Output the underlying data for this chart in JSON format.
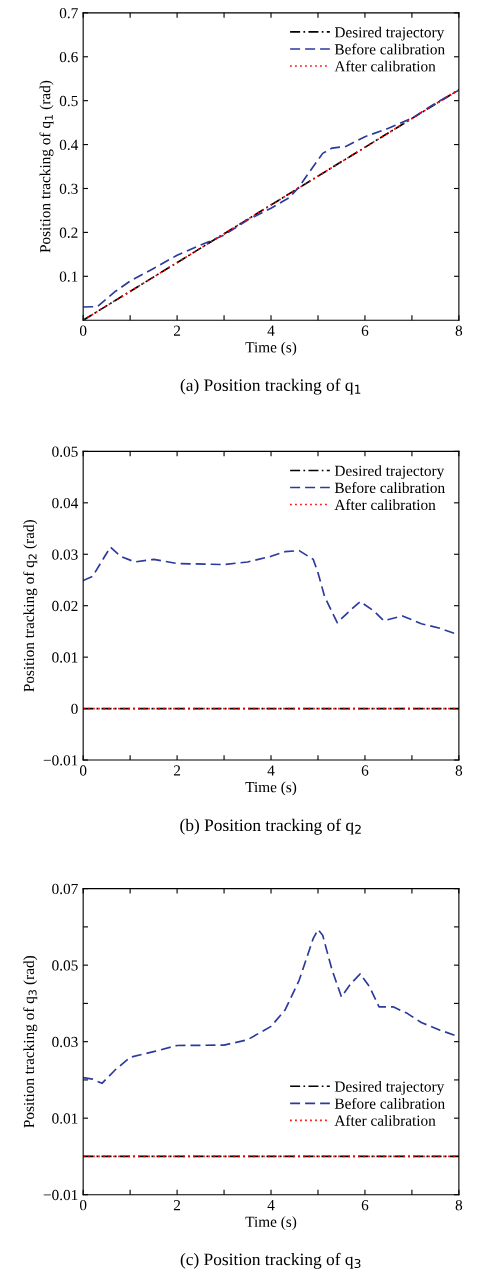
{
  "chart_data": [
    {
      "type": "line",
      "xlabel": "Time (s)",
      "ylabel": "Position tracking of q$_{1}$ (rad)",
      "annotations": [
        "(a) Position tracking of q$_{1}$"
      ],
      "legend": "top right",
      "xlim": [
        0,
        8
      ],
      "ylim": [
        0,
        0.7
      ],
      "xticks": [
        0,
        {
          "value": 1,
          "label": null
        },
        2,
        {
          "value": 3,
          "label": null
        },
        4,
        {
          "value": 5,
          "label": null
        },
        6,
        {
          "value": 7,
          "label": null
        },
        8
      ],
      "yticks": [
        0.1,
        0.2,
        0.3,
        0.4,
        0.5,
        0.6,
        0.7
      ],
      "series": [
        {
          "name": "Desired trajectory",
          "color": "#000000",
          "line_style": "dashdot",
          "x": [
            0,
            8
          ],
          "values": [
            0,
            0.525
          ]
        },
        {
          "name": "Before calibration",
          "color": "#2b3a9c",
          "line_style": "dashed",
          "x": [
            0,
            0.3,
            0.69,
            1.0,
            1.5,
            2.0,
            2.5,
            3.0,
            3.5,
            4.0,
            4.4,
            4.6,
            4.8,
            5.1,
            5.3,
            5.6,
            6.0,
            6.5,
            7.0,
            7.5,
            8.0
          ],
          "values": [
            0.03,
            0.031,
            0.066,
            0.089,
            0.118,
            0.148,
            0.171,
            0.194,
            0.228,
            0.255,
            0.28,
            0.304,
            0.335,
            0.38,
            0.392,
            0.396,
            0.418,
            0.437,
            0.46,
            0.494,
            0.524
          ]
        },
        {
          "name": "After calibration",
          "color": "#ff0000",
          "line_style": "dotted",
          "x": [
            0,
            8
          ],
          "values": [
            0,
            0.525
          ]
        }
      ]
    },
    {
      "type": "line",
      "xlabel": "Time (s)",
      "ylabel": "Position tracking of q$_{2}$ (rad)",
      "annotations": [
        "(b) Position tracking of q$_{2}$"
      ],
      "legend": "top right",
      "xlim": [
        0,
        8
      ],
      "ylim": [
        -0.01,
        0.05
      ],
      "xticks": [
        0,
        {
          "value": 1,
          "label": null
        },
        2,
        {
          "value": 3,
          "label": null
        },
        4,
        {
          "value": 5,
          "label": null
        },
        6,
        {
          "value": 7,
          "label": null
        },
        8
      ],
      "yticks": [
        {
          "value": -0.01,
          "label": "−0.01"
        },
        0,
        0.01,
        0.02,
        0.03,
        0.04,
        0.05
      ],
      "series": [
        {
          "name": "Desired trajectory",
          "color": "#000000",
          "line_style": "dashdot",
          "x": [
            0,
            8
          ],
          "values": [
            0,
            0
          ]
        },
        {
          "name": "Before calibration",
          "color": "#2b3a9c",
          "line_style": "dashed",
          "x": [
            0,
            0.2,
            0.58,
            0.8,
            1.1,
            1.5,
            2.0,
            3.0,
            3.5,
            4.0,
            4.3,
            4.6,
            4.9,
            5.0,
            5.14,
            5.41,
            5.7,
            5.9,
            6.2,
            6.4,
            6.8,
            7.2,
            7.6,
            8.0
          ],
          "values": [
            0.0249,
            0.0257,
            0.0314,
            0.0296,
            0.0285,
            0.029,
            0.0282,
            0.028,
            0.0285,
            0.0296,
            0.0305,
            0.0307,
            0.029,
            0.0264,
            0.0218,
            0.0167,
            0.0192,
            0.0208,
            0.0189,
            0.0171,
            0.018,
            0.0165,
            0.0156,
            0.0143
          ]
        },
        {
          "name": "After calibration",
          "color": "#ff0000",
          "line_style": "dotted",
          "x": [
            0,
            8
          ],
          "values": [
            0,
            0
          ]
        }
      ]
    },
    {
      "type": "line",
      "xlabel": "Time (s)",
      "ylabel": "Position tracking of q$_{3}$ (rad)",
      "annotations": [
        "(c) Position tracking of q$_{3}$"
      ],
      "legend": "bottom right",
      "xlim": [
        0,
        8
      ],
      "ylim": [
        -0.01,
        0.07
      ],
      "xticks": [
        0,
        {
          "value": 1,
          "label": null
        },
        2,
        {
          "value": 3,
          "label": null
        },
        4,
        {
          "value": 5,
          "label": null
        },
        6,
        {
          "value": 7,
          "label": null
        },
        8
      ],
      "yticks": [
        {
          "value": -0.01,
          "label": "−0.01"
        },
        {
          "value": 0,
          "label": null
        },
        0.01,
        {
          "value": 0.02,
          "label": null
        },
        0.03,
        {
          "value": 0.04,
          "label": null
        },
        0.05,
        {
          "value": 0.06,
          "label": null
        },
        0.07
      ],
      "series": [
        {
          "name": "Desired trajectory",
          "color": "#000000",
          "line_style": "dashdot",
          "x": [
            0,
            8
          ],
          "values": [
            0,
            0
          ]
        },
        {
          "name": "Before calibration",
          "color": "#2b3a9c",
          "line_style": "dashed",
          "x": [
            0,
            0.2,
            0.4,
            0.68,
            1.0,
            1.5,
            2.0,
            3.0,
            3.5,
            4.0,
            4.3,
            4.6,
            4.9,
            5.0,
            5.1,
            5.3,
            5.5,
            5.7,
            5.9,
            6.1,
            6.3,
            6.6,
            6.9,
            7.2,
            7.6,
            8.0
          ],
          "values": [
            0.0206,
            0.0202,
            0.0191,
            0.0226,
            0.0259,
            0.0274,
            0.029,
            0.0291,
            0.0305,
            0.034,
            0.0383,
            0.0461,
            0.057,
            0.0593,
            0.0578,
            0.0487,
            0.0417,
            0.0452,
            0.0477,
            0.0443,
            0.0391,
            0.0391,
            0.0374,
            0.035,
            0.033,
            0.0313
          ]
        },
        {
          "name": "After calibration",
          "color": "#ff0000",
          "line_style": "dotted",
          "x": [
            0,
            8
          ],
          "values": [
            0,
            0
          ]
        }
      ]
    }
  ]
}
